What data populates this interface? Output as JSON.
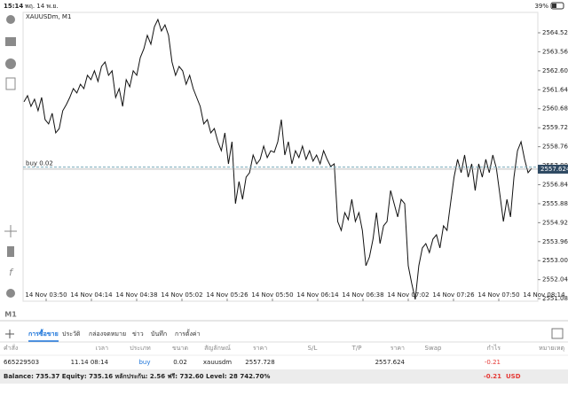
{
  "status_bar": {
    "time": "15:14",
    "date": "พฤ. 14 พ.ย.",
    "battery": "39%"
  },
  "chart": {
    "symbol": "XAUUSDm, M1",
    "timeframe_button": "M1",
    "position_label": "buy 0.02",
    "current_price": 2557.624,
    "ylim": [
      2550.95,
      2565.55
    ],
    "yticks": [
      {
        "value": 2551.08,
        "label": "2551.080"
      },
      {
        "value": 2552.04,
        "label": "2552.040"
      },
      {
        "value": 2553.0,
        "label": "2553.000"
      },
      {
        "value": 2553.96,
        "label": "2553.960"
      },
      {
        "value": 2554.92,
        "label": "2554.920"
      },
      {
        "value": 2555.88,
        "label": "2555.880"
      },
      {
        "value": 2556.84,
        "label": "2556.840"
      },
      {
        "value": 2557.8,
        "label": "2557.800"
      },
      {
        "value": 2558.76,
        "label": "2558.760"
      },
      {
        "value": 2559.72,
        "label": "2559.720"
      },
      {
        "value": 2560.68,
        "label": "2560.680"
      },
      {
        "value": 2561.64,
        "label": "2561.640"
      },
      {
        "value": 2562.6,
        "label": "2562.600"
      },
      {
        "value": 2563.56,
        "label": "2563.560"
      },
      {
        "value": 2564.52,
        "label": "2564.520"
      }
    ],
    "time_labels": [
      "14 Nov 03:50",
      "14 Nov 04:14",
      "14 Nov 04:38",
      "14 Nov 05:02",
      "14 Nov 05:26",
      "14 Nov 05:50",
      "14 Nov 06:14",
      "14 Nov 06:38",
      "14 Nov 07:02",
      "14 Nov 07:26",
      "14 Nov 07:50",
      "14 Nov 08:14"
    ],
    "prices": [
      2561.03,
      2561.34,
      2560.8,
      2561.16,
      2560.58,
      2561.25,
      2560.13,
      2559.91,
      2560.45,
      2559.46,
      2559.68,
      2560.58,
      2560.89,
      2561.25,
      2561.7,
      2561.48,
      2561.92,
      2561.7,
      2562.37,
      2562.15,
      2562.6,
      2562.06,
      2562.82,
      2563.04,
      2562.37,
      2562.6,
      2561.25,
      2561.7,
      2560.8,
      2562.15,
      2561.79,
      2562.6,
      2562.37,
      2563.27,
      2563.71,
      2564.39,
      2563.94,
      2564.83,
      2565.19,
      2564.61,
      2564.92,
      2564.39,
      2563.04,
      2562.37,
      2562.82,
      2562.6,
      2561.92,
      2562.37,
      2561.7,
      2561.25,
      2560.8,
      2559.91,
      2560.13,
      2559.46,
      2559.68,
      2559.01,
      2558.56,
      2559.46,
      2557.89,
      2559.01,
      2555.88,
      2557.0,
      2556.1,
      2557.22,
      2557.45,
      2558.34,
      2557.89,
      2558.12,
      2558.79,
      2558.21,
      2558.56,
      2558.48,
      2559.01,
      2560.13,
      2558.34,
      2559.01,
      2557.89,
      2558.56,
      2558.21,
      2558.79,
      2558.12,
      2558.56,
      2558.03,
      2558.34,
      2557.89,
      2558.56,
      2558.12,
      2557.76,
      2557.89,
      2554.98,
      2554.53,
      2555.43,
      2555.07,
      2556.1,
      2554.98,
      2555.43,
      2554.53,
      2552.74,
      2553.19,
      2554.09,
      2555.43,
      2553.86,
      2554.76,
      2554.98,
      2556.55,
      2555.88,
      2555.21,
      2556.1,
      2555.88,
      2552.74,
      2551.85,
      2551.04,
      2552.74,
      2553.64,
      2553.86,
      2553.41,
      2554.09,
      2554.31,
      2553.64,
      2554.76,
      2554.53,
      2555.88,
      2557.22,
      2558.12,
      2557.45,
      2558.34,
      2557.22,
      2557.89,
      2556.55,
      2557.89,
      2557.22,
      2558.12,
      2557.45,
      2558.34,
      2557.67,
      2556.33,
      2554.98,
      2556.1,
      2555.21,
      2557.22,
      2558.56,
      2559.01,
      2558.12,
      2557.45,
      2557.67
    ]
  },
  "tabs": [
    "การซื้อขาย",
    "ประวัติ",
    "กล่องจดหมาย",
    "ข่าว",
    "บันทึก",
    "การตั้งค่า"
  ],
  "table": {
    "headers": [
      "คำสั่ง",
      "เวลา",
      "ประเภท",
      "ขนาด",
      "สัญลักษณ์",
      "ราคา",
      "S/L",
      "T/P",
      "ราคา",
      "Swap",
      "กำไร",
      "หมายเหตุ"
    ],
    "rows": [
      [
        "665229503",
        "11.14 08:14",
        "buy",
        "0.02",
        "xauusdm",
        "2557.728",
        "",
        "",
        "2557.624",
        "",
        "-0.21",
        ""
      ]
    ]
  },
  "footer": {
    "summary": "Balance: 735.37 Equity: 735.16 หลักประกัน: 2.56 ฟรี: 732.60 Level: 28 742.70%",
    "profit": "-0.21",
    "currency": "USD"
  }
}
